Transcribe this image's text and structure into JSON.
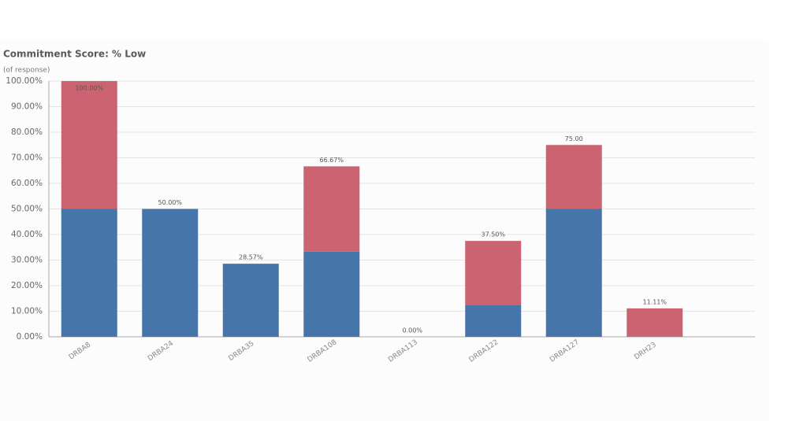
{
  "chart_data": {
    "type": "stacked_bar",
    "title": "Commitment Score: % Low",
    "subtitle": "(of response)",
    "categories": [
      "DRBA8",
      "DRBA24",
      "DRBA35",
      "DRBA108",
      "DRBA113",
      "DRBA122",
      "DRBA127",
      "DRH23"
    ],
    "series": [
      {
        "color": "#4675aa",
        "values": [
          50,
          50,
          28.57,
          33.33,
          0,
          12.5,
          50,
          0
        ]
      },
      {
        "color": "#cc6371",
        "values": [
          50,
          0,
          0,
          33.33,
          0,
          25,
          25,
          11.11
        ]
      }
    ],
    "totals": {
      "values": [
        100,
        50,
        28.57,
        66.67,
        0,
        37.5,
        75,
        11.11
      ],
      "value_labels": [
        "100.00%",
        "50.00%",
        "28.57%",
        "66.67%",
        "0.00%",
        "37.50%",
        "75.00",
        "11.11%"
      ]
    },
    "ylim": [
      0,
      100
    ],
    "yticks": [
      {
        "value": 0,
        "label": "0.00%"
      },
      {
        "value": 10,
        "label": "10.00%"
      },
      {
        "value": 20,
        "label": "20.00%"
      },
      {
        "value": 30,
        "label": "30.00%"
      },
      {
        "value": 40,
        "label": "40.00%"
      },
      {
        "value": 50,
        "label": "50.00%"
      },
      {
        "value": 60,
        "label": "60.00%"
      },
      {
        "value": 70,
        "label": "70.00%"
      },
      {
        "value": 80,
        "label": "80.00%"
      },
      {
        "value": 90,
        "label": "90.00%"
      },
      {
        "value": 100,
        "label": "100.00%"
      }
    ],
    "grid": true
  }
}
